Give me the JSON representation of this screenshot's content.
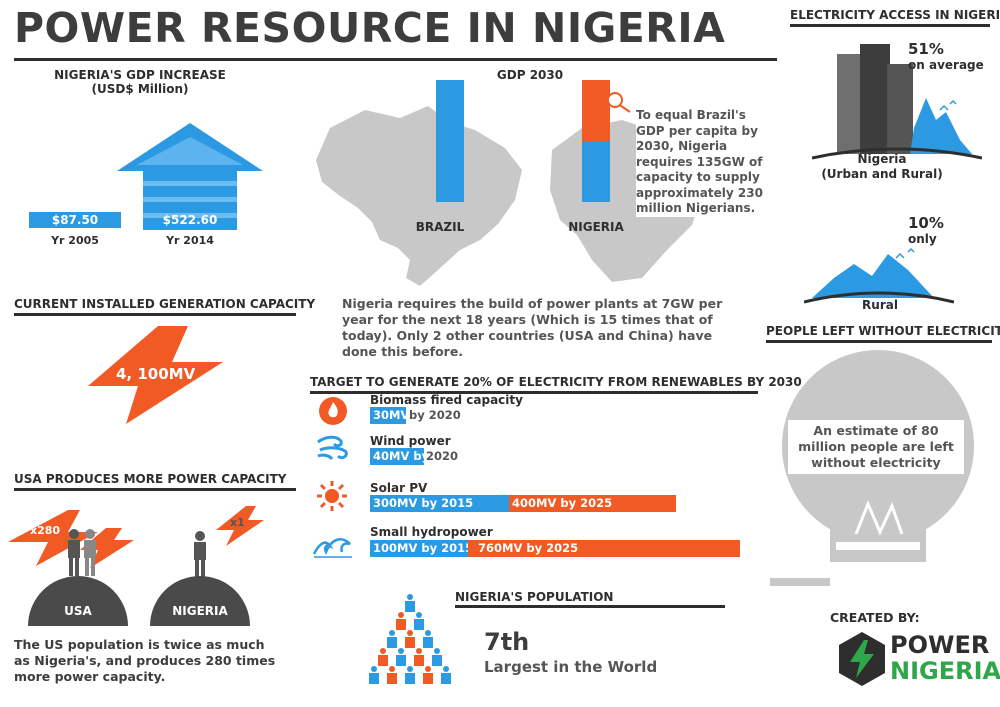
{
  "title": "POWER RESOURCE IN NIGERIA",
  "colors": {
    "blue": "#2b9ae3",
    "orange": "#f15a24",
    "dark": "#3d3d3d",
    "gray": "#c8c8c8"
  },
  "gdp_increase": {
    "heading_line1": "NIGERIA'S GDP INCREASE",
    "heading_line2": "(USD$ Million)",
    "bars": [
      {
        "value": "$87.50",
        "year": "Yr 2005"
      },
      {
        "value": "$522.60",
        "year": "Yr 2014"
      }
    ]
  },
  "gdp_2030": {
    "heading": "GDP 2030",
    "brazil_label": "BRAZIL",
    "nigeria_label": "NIGERIA",
    "nigeria_fill_fraction": 0.5,
    "callout": "To equal Brazil's GDP per capita by 2030, Nigeria requires 135GW of capacity to supply approximately 230 million Nigerians.",
    "requirement": "Nigeria requires the build of power plants at 7GW per year for the next 18 years (Which is 15 times that of today). Only 2 other countries (USA and China) have done this before."
  },
  "capacity": {
    "heading": "CURRENT INSTALLED GENERATION CAPACITY",
    "value": "4, 100MV"
  },
  "usa": {
    "heading": "USA PRODUCES MORE POWER CAPACITY",
    "usa_multiplier": "x280",
    "nigeria_multiplier": "x1",
    "usa_label": "USA",
    "nigeria_label": "NIGERIA",
    "description": "The US population is twice as much as Nigeria's, and produces 280 times more power capacity."
  },
  "renewables": {
    "heading": "TARGET TO GENERATE 20% OF ELECTRICITY FROM RENEWABLES BY 2030",
    "items": [
      {
        "name": "Biomass fired capacity",
        "icon": "flame-icon",
        "seg1": "30MV",
        "suffix": "by 2020",
        "seg2": ""
      },
      {
        "name": "Wind power",
        "icon": "wind-icon",
        "seg1": "40MV by",
        "suffix": "2020",
        "seg2": ""
      },
      {
        "name": "Solar PV",
        "icon": "sun-icon",
        "seg1": "300MV by 2015",
        "suffix": "",
        "seg2": "400MV by 2025"
      },
      {
        "name": "Small hydropower",
        "icon": "wave-icon",
        "seg1": "100MV by 2015",
        "suffix": "",
        "seg2": "760MV by 2025"
      }
    ]
  },
  "population": {
    "heading": "NIGERIA'S POPULATION",
    "rank": "7th",
    "rank_label": "Largest in the World"
  },
  "access": {
    "heading": "ELECTRICITY ACCESS IN NIGERIA",
    "urban_pct": "51%",
    "urban_sub": "on average",
    "urban_label_line1": "Nigeria",
    "urban_label_line2": "(Urban and Rural)",
    "rural_pct": "10%",
    "rural_sub": "only",
    "rural_label": "Rural"
  },
  "without": {
    "heading": "PEOPLE LEFT WITHOUT ELECTRICITY",
    "text": "An estimate of 80 million people are left without electricity"
  },
  "credits": {
    "created_by": "CREATED BY:",
    "logo_line1": "POWER",
    "logo_line2": "NIGERIA"
  }
}
